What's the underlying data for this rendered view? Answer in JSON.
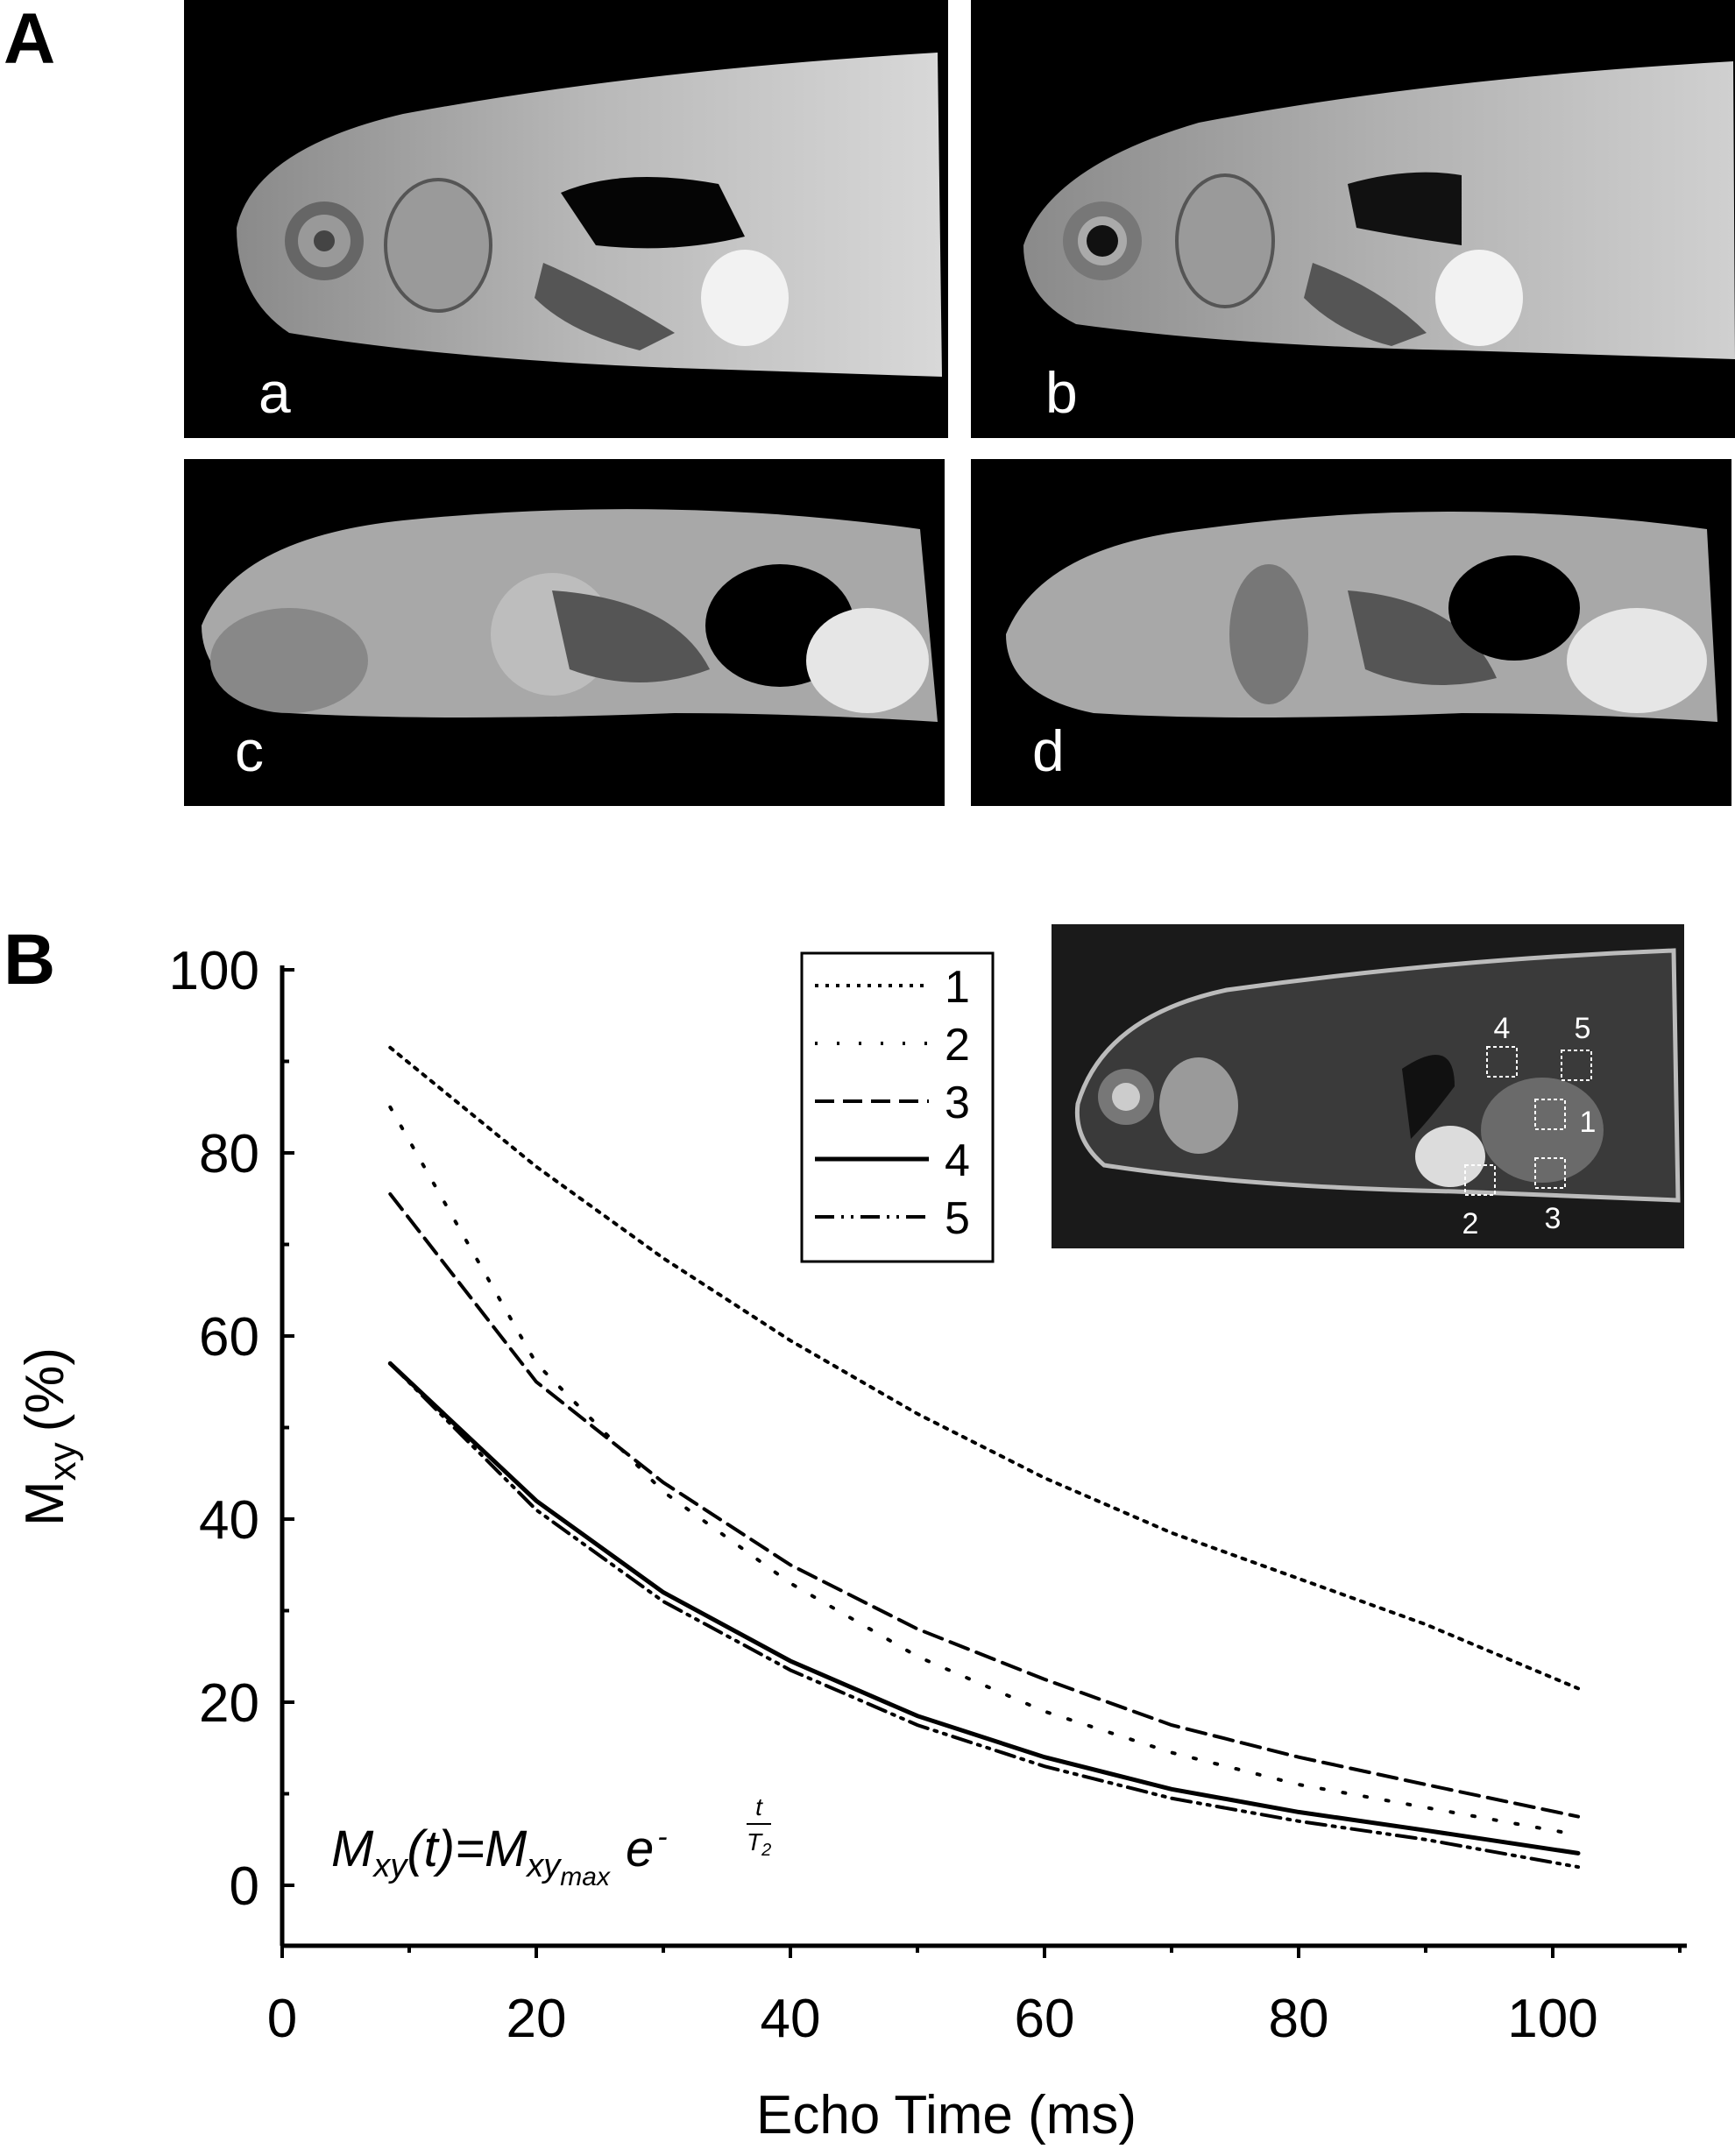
{
  "panels": {
    "A": {
      "letter": "A",
      "subpanels": [
        "a",
        "b",
        "c",
        "d"
      ]
    },
    "B": {
      "letter": "B"
    }
  },
  "inset": {
    "roi_labels": [
      "1",
      "2",
      "3",
      "4",
      "5"
    ]
  },
  "equation": {
    "lhs": "M",
    "lhs_sub": "xy",
    "arg": "(t)=M",
    "rhs_sub": "xy",
    "max_sub": "max",
    "exp_base": "e",
    "exp_sign": "-",
    "exp_num": "t",
    "exp_den": "T",
    "exp_den_sub": "2"
  },
  "chart_data": {
    "type": "line",
    "xlabel": "Echo Time (ms)",
    "ylabel_main": "M",
    "ylabel_sub": "xy",
    "ylabel_unit": "(%)",
    "xlim": [
      0,
      110
    ],
    "ylim": [
      -5,
      100
    ],
    "xticks": [
      0,
      20,
      40,
      60,
      80,
      100
    ],
    "yticks": [
      0,
      20,
      40,
      60,
      80,
      100
    ],
    "grid": false,
    "legend_position": "top-center",
    "series": [
      {
        "name": "1",
        "style": "dotted-dense",
        "x": [
          8.5,
          20,
          30,
          40,
          50,
          60,
          70,
          80,
          90,
          102
        ],
        "y": [
          91.5,
          78.5,
          68.5,
          59.5,
          51.5,
          44.5,
          38.5,
          33.5,
          28.5,
          21.5
        ]
      },
      {
        "name": "2",
        "style": "dotted-sparse",
        "x": [
          8.5,
          20,
          30,
          40,
          50,
          60,
          70,
          80,
          90,
          102
        ],
        "y": [
          85,
          57,
          43,
          33,
          25,
          19,
          14.5,
          11,
          8.5,
          5.5
        ]
      },
      {
        "name": "3",
        "style": "dashed",
        "x": [
          8.5,
          20,
          30,
          40,
          50,
          60,
          70,
          80,
          90,
          102
        ],
        "y": [
          75.5,
          55,
          44,
          35,
          28,
          22.5,
          17.5,
          14,
          11,
          7.5
        ]
      },
      {
        "name": "4",
        "style": "solid",
        "x": [
          8.5,
          20,
          30,
          40,
          50,
          60,
          70,
          80,
          90,
          102
        ],
        "y": [
          57,
          42,
          32,
          24.5,
          18.5,
          14,
          10.5,
          8,
          6,
          3.5
        ]
      },
      {
        "name": "5",
        "style": "dash-dot-dot",
        "x": [
          8.5,
          20,
          30,
          40,
          50,
          60,
          70,
          80,
          90,
          102
        ],
        "y": [
          57,
          41,
          31,
          23.5,
          17.5,
          13,
          9.5,
          7,
          5,
          2
        ]
      }
    ]
  }
}
